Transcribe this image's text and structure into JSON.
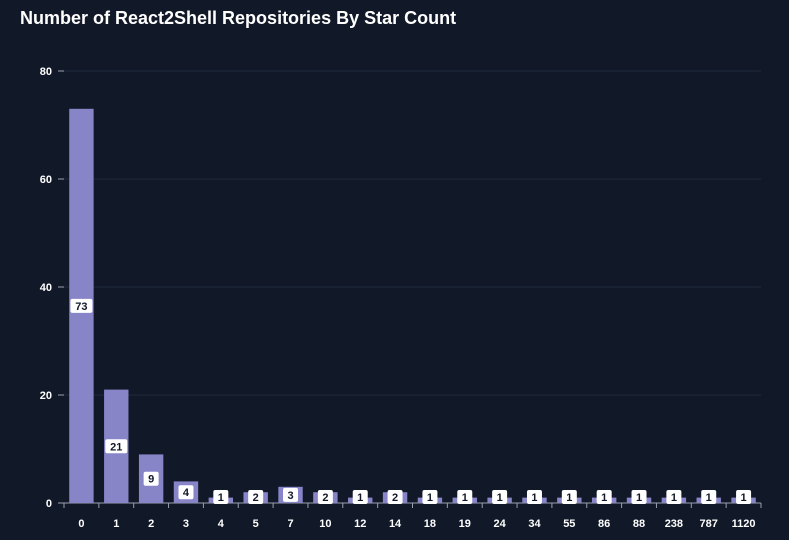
{
  "chart_data": {
    "type": "bar",
    "title": "Number of React2Shell Repositories By Star Count",
    "xlabel": "",
    "ylabel": "",
    "categories": [
      "0",
      "1",
      "2",
      "3",
      "4",
      "5",
      "7",
      "10",
      "12",
      "14",
      "18",
      "19",
      "24",
      "34",
      "55",
      "86",
      "88",
      "238",
      "787",
      "1120"
    ],
    "values": [
      73,
      21,
      9,
      4,
      1,
      2,
      3,
      2,
      1,
      2,
      1,
      1,
      1,
      1,
      1,
      1,
      1,
      1,
      1,
      1
    ],
    "ylim": [
      0,
      80
    ],
    "yticks": [
      0,
      20,
      40,
      60,
      80
    ],
    "grid": true,
    "legend": "none",
    "colors": {
      "bar": "#8884c8",
      "background": "#111827",
      "grid": "#1f2a3c",
      "axis": "#9aa0b0",
      "label_bg": "#ffffff",
      "label_text": "#111827"
    }
  }
}
